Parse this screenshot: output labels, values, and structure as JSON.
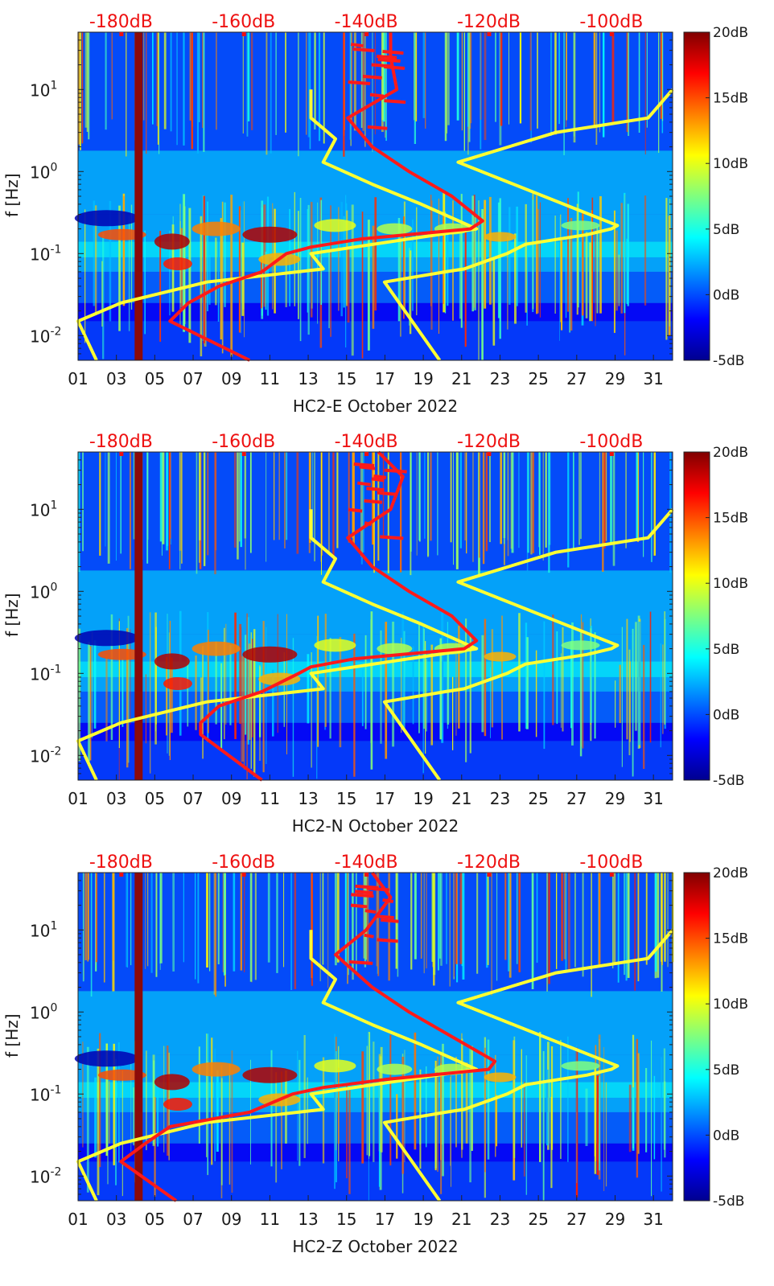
{
  "figure": {
    "colors": {
      "line_noise_model": "#ffff33",
      "line_median_psd": "#ff1a1a",
      "top_axis_text": "#ee1111"
    }
  },
  "colorbar": {
    "range_db": [
      -5,
      20
    ],
    "ticks": [
      "20dB",
      "15dB",
      "10dB",
      "5dB",
      "0dB",
      "-5dB"
    ],
    "colormap": "jet"
  },
  "chart_data": [
    {
      "type": "heatmap",
      "title": "",
      "xlabel": "HC2-E October 2022",
      "ylabel": "f [Hz]",
      "x_ticks": [
        "01",
        "03",
        "05",
        "07",
        "09",
        "11",
        "13",
        "15",
        "17",
        "19",
        "21",
        "23",
        "25",
        "27",
        "29",
        "31"
      ],
      "x_range_days": [
        1,
        32
      ],
      "y_scale": "log",
      "y_range_hz": [
        0.005,
        50
      ],
      "y_ticks": [
        "10^-2",
        "10^-1",
        "10^0",
        "10^1"
      ],
      "top_axis": {
        "labels": [
          "-180dB",
          "-160dB",
          "-140dB",
          "-120dB",
          "-100dB"
        ],
        "range_db": [
          -187,
          -90
        ]
      },
      "series": [
        {
          "name": "noise-model-curve-left",
          "color": "#ffff33",
          "points": [
            [
              10,
              -149
            ],
            [
              10,
              -149
            ],
            [
              4.5,
              -149
            ],
            [
              2.5,
              -145
            ],
            [
              1.3,
              -147
            ],
            [
              0.7,
              -139
            ],
            [
              0.4,
              -131
            ],
            [
              0.2,
              -122
            ],
            [
              0.1,
              -149
            ],
            [
              0.065,
              -147
            ],
            [
              0.045,
              -166
            ],
            [
              0.025,
              -180
            ],
            [
              0.015,
              -187
            ],
            [
              0.005,
              -184
            ]
          ]
        },
        {
          "name": "noise-model-curve-right",
          "color": "#ffff33",
          "points": [
            [
              0.005,
              -128
            ],
            [
              0.045,
              -137
            ],
            [
              0.06,
              -127
            ],
            [
              0.065,
              -124
            ],
            [
              0.1,
              -117
            ],
            [
              0.13,
              -114
            ],
            [
              0.17,
              -104
            ],
            [
              0.2,
              -100
            ],
            [
              0.22,
              -99
            ],
            [
              1.3,
              -125
            ],
            [
              3,
              -109
            ],
            [
              4.5,
              -94
            ],
            [
              10,
              -90
            ]
          ]
        },
        {
          "name": "median-psd-curve",
          "color": "#ff1a1a",
          "points": [
            [
              50,
              -136
            ],
            [
              25,
              -136
            ],
            [
              10,
              -135
            ],
            [
              4.5,
              -143
            ],
            [
              2,
              -139
            ],
            [
              1,
              -133
            ],
            [
              0.5,
              -126
            ],
            [
              0.25,
              -121
            ],
            [
              0.2,
              -123
            ],
            [
              0.15,
              -141
            ],
            [
              0.12,
              -149
            ],
            [
              0.1,
              -153
            ],
            [
              0.06,
              -157
            ],
            [
              0.04,
              -164
            ],
            [
              0.025,
              -169
            ],
            [
              0.015,
              -172
            ],
            [
              0.005,
              -159
            ]
          ]
        }
      ]
    },
    {
      "type": "heatmap",
      "title": "",
      "xlabel": "HC2-N October 2022",
      "ylabel": "f [Hz]",
      "x_ticks": [
        "01",
        "03",
        "05",
        "07",
        "09",
        "11",
        "13",
        "15",
        "17",
        "19",
        "21",
        "23",
        "25",
        "27",
        "29",
        "31"
      ],
      "x_range_days": [
        1,
        32
      ],
      "y_scale": "log",
      "y_range_hz": [
        0.005,
        50
      ],
      "y_ticks": [
        "10^-2",
        "10^-1",
        "10^0",
        "10^1"
      ],
      "top_axis": {
        "labels": [
          "-180dB",
          "-160dB",
          "-140dB",
          "-120dB",
          "-100dB"
        ],
        "range_db": [
          -187,
          -90
        ]
      },
      "series": [
        {
          "name": "noise-model-curve-left",
          "color": "#ffff33",
          "points": [
            [
              10,
              -149
            ],
            [
              10,
              -149
            ],
            [
              4.5,
              -149
            ],
            [
              2.5,
              -145
            ],
            [
              1.3,
              -147
            ],
            [
              0.7,
              -139
            ],
            [
              0.4,
              -131
            ],
            [
              0.2,
              -122
            ],
            [
              0.1,
              -149
            ],
            [
              0.065,
              -147
            ],
            [
              0.045,
              -166
            ],
            [
              0.025,
              -180
            ],
            [
              0.015,
              -187
            ],
            [
              0.005,
              -184
            ]
          ]
        },
        {
          "name": "noise-model-curve-right",
          "color": "#ffff33",
          "points": [
            [
              0.005,
              -128
            ],
            [
              0.045,
              -137
            ],
            [
              0.06,
              -127
            ],
            [
              0.065,
              -124
            ],
            [
              0.1,
              -117
            ],
            [
              0.13,
              -114
            ],
            [
              0.17,
              -104
            ],
            [
              0.2,
              -100
            ],
            [
              0.22,
              -99
            ],
            [
              1.3,
              -125
            ],
            [
              3,
              -109
            ],
            [
              4.5,
              -94
            ],
            [
              10,
              -90
            ]
          ]
        },
        {
          "name": "median-psd-curve",
          "color": "#ff1a1a",
          "points": [
            [
              50,
              -138
            ],
            [
              25,
              -134
            ],
            [
              10,
              -136
            ],
            [
              4.5,
              -143
            ],
            [
              2,
              -139
            ],
            [
              1,
              -133
            ],
            [
              0.5,
              -126
            ],
            [
              0.25,
              -122
            ],
            [
              0.2,
              -124
            ],
            [
              0.15,
              -142
            ],
            [
              0.12,
              -149
            ],
            [
              0.1,
              -151
            ],
            [
              0.06,
              -157
            ],
            [
              0.04,
              -164
            ],
            [
              0.025,
              -167
            ],
            [
              0.018,
              -167
            ],
            [
              0.005,
              -157
            ]
          ]
        }
      ]
    },
    {
      "type": "heatmap",
      "title": "",
      "xlabel": "HC2-Z October 2022",
      "ylabel": "f [Hz]",
      "x_ticks": [
        "01",
        "03",
        "05",
        "07",
        "09",
        "11",
        "13",
        "15",
        "17",
        "19",
        "21",
        "23",
        "25",
        "27",
        "29",
        "31"
      ],
      "x_range_days": [
        1,
        32
      ],
      "y_scale": "log",
      "y_range_hz": [
        0.005,
        50
      ],
      "y_ticks": [
        "10^-2",
        "10^-1",
        "10^0",
        "10^1"
      ],
      "top_axis": {
        "labels": [
          "-180dB",
          "-160dB",
          "-140dB",
          "-120dB",
          "-100dB"
        ],
        "range_db": [
          -187,
          -90
        ]
      },
      "series": [
        {
          "name": "noise-model-curve-left",
          "color": "#ffff33",
          "points": [
            [
              10,
              -149
            ],
            [
              10,
              -149
            ],
            [
              4.5,
              -149
            ],
            [
              2.5,
              -145
            ],
            [
              1.3,
              -147
            ],
            [
              0.7,
              -139
            ],
            [
              0.4,
              -131
            ],
            [
              0.2,
              -122
            ],
            [
              0.1,
              -149
            ],
            [
              0.065,
              -147
            ],
            [
              0.045,
              -166
            ],
            [
              0.025,
              -180
            ],
            [
              0.015,
              -187
            ],
            [
              0.005,
              -184
            ]
          ]
        },
        {
          "name": "noise-model-curve-right",
          "color": "#ffff33",
          "points": [
            [
              0.005,
              -128
            ],
            [
              0.045,
              -137
            ],
            [
              0.06,
              -127
            ],
            [
              0.065,
              -124
            ],
            [
              0.1,
              -117
            ],
            [
              0.13,
              -114
            ],
            [
              0.17,
              -104
            ],
            [
              0.2,
              -100
            ],
            [
              0.22,
              -99
            ],
            [
              1.3,
              -125
            ],
            [
              3,
              -109
            ],
            [
              4.5,
              -94
            ],
            [
              10,
              -90
            ]
          ]
        },
        {
          "name": "median-psd-curve",
          "color": "#ff1a1a",
          "points": [
            [
              50,
              -139
            ],
            [
              25,
              -136
            ],
            [
              10,
              -140
            ],
            [
              5,
              -145
            ],
            [
              2,
              -139
            ],
            [
              1,
              -133
            ],
            [
              0.5,
              -126
            ],
            [
              0.25,
              -119
            ],
            [
              0.2,
              -120
            ],
            [
              0.15,
              -137
            ],
            [
              0.12,
              -147
            ],
            [
              0.1,
              -152
            ],
            [
              0.06,
              -159
            ],
            [
              0.04,
              -172
            ],
            [
              0.025,
              -176
            ],
            [
              0.015,
              -180
            ],
            [
              0.005,
              -171
            ]
          ]
        }
      ]
    }
  ]
}
